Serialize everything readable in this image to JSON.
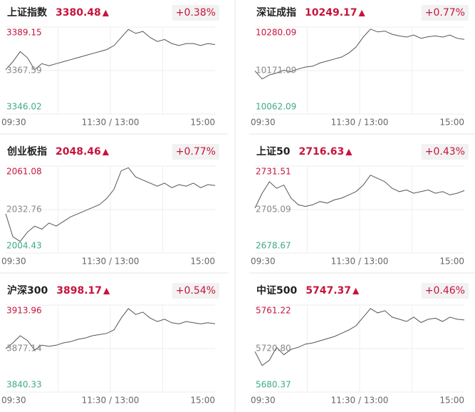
{
  "chart_data": [
    {
      "type": "line",
      "title": "上证指数",
      "price": "3380.48",
      "arrow": "▲",
      "change": "+0.38%",
      "color": "#555555",
      "xticks": [
        "09:30",
        "11:30 / 13:00",
        "15:00"
      ],
      "ylim": [
        3346.02,
        3389.15
      ],
      "yticks": [
        3346.02,
        3367.59,
        3389.15
      ],
      "values": [
        3368,
        3372,
        3377,
        3374,
        3368,
        3371,
        3370,
        3371,
        3372,
        3373,
        3374,
        3375,
        3376,
        3377,
        3378,
        3380,
        3384,
        3388,
        3386,
        3387,
        3384,
        3382,
        3383,
        3381,
        3380,
        3381,
        3381,
        3380,
        3381,
        3380.48
      ]
    },
    {
      "type": "line",
      "title": "深证成指",
      "price": "10249.17",
      "arrow": "▲",
      "change": "+0.77%",
      "color": "#555555",
      "xticks": [
        "09:30",
        "11:30 / 13:00",
        "15:00"
      ],
      "ylim": [
        10062.09,
        10280.09
      ],
      "yticks": [
        10062.09,
        10171.09,
        10280.09
      ],
      "values": [
        10170,
        10150,
        10160,
        10165,
        10172,
        10168,
        10175,
        10180,
        10182,
        10190,
        10195,
        10200,
        10205,
        10215,
        10230,
        10255,
        10275,
        10268,
        10270,
        10262,
        10258,
        10255,
        10260,
        10252,
        10256,
        10258,
        10255,
        10260,
        10252,
        10249.17
      ]
    },
    {
      "type": "line",
      "title": "创业板指",
      "price": "2048.46",
      "arrow": "▲",
      "change": "+0.77%",
      "color": "#555555",
      "xticks": [
        "09:30",
        "11:30 / 13:00",
        "15:00"
      ],
      "ylim": [
        2004.43,
        2061.08
      ],
      "yticks": [
        2004.43,
        2032.76,
        2061.08
      ],
      "values": [
        2030,
        2015,
        2012,
        2018,
        2022,
        2020,
        2024,
        2022,
        2025,
        2028,
        2030,
        2032,
        2034,
        2036,
        2040,
        2046,
        2058,
        2060,
        2054,
        2052,
        2050,
        2048,
        2050,
        2047,
        2049,
        2048,
        2050,
        2047,
        2049,
        2048.46
      ]
    },
    {
      "type": "line",
      "title": "上证50",
      "price": "2716.63",
      "arrow": "▲",
      "change": "+0.43%",
      "color": "#555555",
      "xticks": [
        "09:30",
        "11:30 / 13:00",
        "15:00"
      ],
      "ylim": [
        2678.67,
        2731.51
      ],
      "yticks": [
        2678.67,
        2705.09,
        2731.51
      ],
      "values": [
        2706,
        2715,
        2722,
        2718,
        2720,
        2712,
        2708,
        2707,
        2708,
        2710,
        2709,
        2711,
        2712,
        2714,
        2716,
        2720,
        2726,
        2724,
        2722,
        2718,
        2716,
        2717,
        2715,
        2716,
        2717,
        2715,
        2716,
        2714,
        2715,
        2716.63
      ]
    },
    {
      "type": "line",
      "title": "沪深300",
      "price": "3898.17",
      "arrow": "▲",
      "change": "+0.54%",
      "color": "#555555",
      "xticks": [
        "09:30",
        "11:30 / 13:00",
        "15:00"
      ],
      "ylim": [
        3840.33,
        3913.96
      ],
      "yticks": [
        3840.33,
        3877.14,
        3913.96
      ],
      "values": [
        3877,
        3882,
        3888,
        3884,
        3876,
        3880,
        3879,
        3880,
        3882,
        3883,
        3885,
        3886,
        3888,
        3889,
        3890,
        3893,
        3903,
        3911,
        3906,
        3908,
        3903,
        3900,
        3902,
        3899,
        3898,
        3900,
        3899,
        3898,
        3899,
        3898.17
      ]
    },
    {
      "type": "line",
      "title": "中证500",
      "price": "5747.37",
      "arrow": "▲",
      "change": "+0.46%",
      "color": "#555555",
      "xticks": [
        "09:30",
        "11:30 / 13:00",
        "15:00"
      ],
      "ylim": [
        5680.37,
        5761.22
      ],
      "yticks": [
        5680.37,
        {
          "value": 5720.8,
          "label": "5720.80"
        },
        5761.22
      ],
      "values": [
        5718,
        5705,
        5710,
        5722,
        5715,
        5720,
        5722,
        5725,
        5726,
        5728,
        5730,
        5732,
        5735,
        5738,
        5742,
        5750,
        5758,
        5754,
        5756,
        5750,
        5748,
        5746,
        5750,
        5745,
        5748,
        5749,
        5746,
        5750,
        5748,
        5747.37
      ]
    }
  ]
}
